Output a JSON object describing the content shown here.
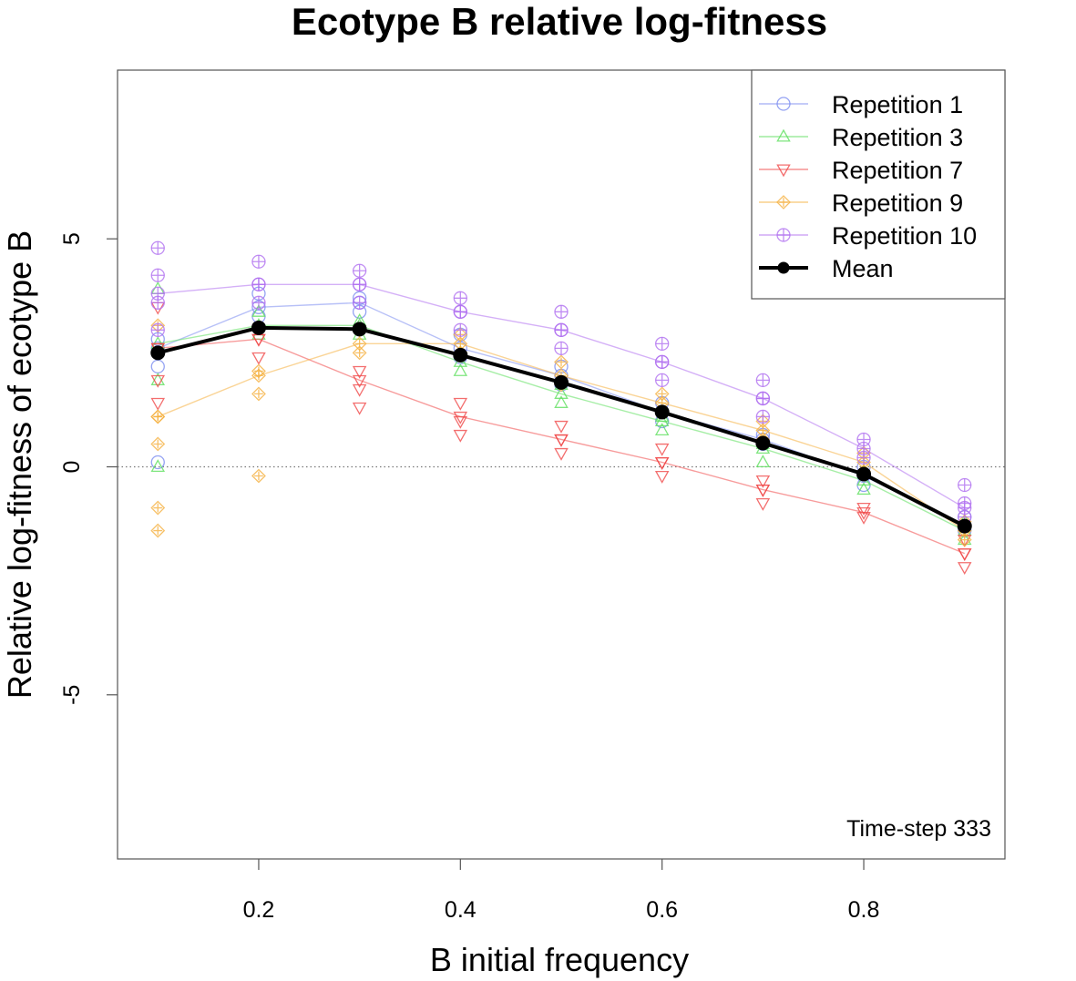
{
  "chart_data": {
    "type": "line",
    "title": "Ecotype B relative log-fitness",
    "xlabel": "B initial frequency",
    "ylabel": "Relative log-fitness of ecotype B",
    "annotation": "Time-step 333",
    "xlim": [
      0.06,
      0.94
    ],
    "ylim": [
      -8.6,
      8.7
    ],
    "x_ticks": [
      0.2,
      0.4,
      0.6,
      0.8
    ],
    "x_tick_labels": [
      "0.2",
      "0.4",
      "0.6",
      "0.8"
    ],
    "y_ticks": [
      -5,
      0,
      5
    ],
    "y_tick_labels": [
      "-5",
      "0",
      "5"
    ],
    "reference_line_y": 0,
    "legend_position": "top-right",
    "x": [
      0.1,
      0.2,
      0.3,
      0.4,
      0.5,
      0.6,
      0.7,
      0.8,
      0.9
    ],
    "series": [
      {
        "name": "Repetition 1",
        "color": "#7b8cf0",
        "marker": "circle",
        "values": [
          2.6,
          3.5,
          3.6,
          2.6,
          2.0,
          1.2,
          0.6,
          -0.2,
          -1.3
        ],
        "scatter": [
          [
            0.1,
            0.1
          ],
          [
            0.1,
            2.2
          ],
          [
            0.1,
            2.8
          ],
          [
            0.2,
            3.3
          ],
          [
            0.2,
            3.8
          ],
          [
            0.3,
            3.4
          ],
          [
            0.3,
            3.7
          ],
          [
            0.4,
            2.4
          ],
          [
            0.4,
            2.9
          ],
          [
            0.5,
            1.8
          ],
          [
            0.5,
            2.2
          ],
          [
            0.6,
            1.0
          ],
          [
            0.6,
            1.4
          ],
          [
            0.7,
            0.5
          ],
          [
            0.7,
            0.7
          ],
          [
            0.8,
            -0.4
          ],
          [
            0.8,
            0.0
          ],
          [
            0.9,
            -1.4
          ],
          [
            0.9,
            -1.1
          ]
        ]
      },
      {
        "name": "Repetition 3",
        "color": "#5fe05f",
        "marker": "triangle",
        "values": [
          2.7,
          3.1,
          3.1,
          2.3,
          1.6,
          1.0,
          0.4,
          -0.3,
          -1.4
        ],
        "scatter": [
          [
            0.1,
            0.0
          ],
          [
            0.1,
            1.9
          ],
          [
            0.1,
            3.9
          ],
          [
            0.2,
            2.9
          ],
          [
            0.2,
            3.4
          ],
          [
            0.3,
            2.9
          ],
          [
            0.3,
            3.2
          ],
          [
            0.4,
            2.1
          ],
          [
            0.4,
            2.5
          ],
          [
            0.5,
            1.4
          ],
          [
            0.5,
            1.8
          ],
          [
            0.6,
            0.8
          ],
          [
            0.6,
            1.1
          ],
          [
            0.7,
            0.1
          ],
          [
            0.7,
            0.5
          ],
          [
            0.8,
            -0.5
          ],
          [
            0.8,
            -0.1
          ],
          [
            0.9,
            -1.6
          ],
          [
            0.9,
            -1.2
          ]
        ]
      },
      {
        "name": "Repetition 7",
        "color": "#f04a4a",
        "marker": "triangle-down",
        "values": [
          2.6,
          2.8,
          1.9,
          1.1,
          0.6,
          0.1,
          -0.5,
          -1.0,
          -1.9
        ],
        "scatter": [
          [
            0.1,
            1.4
          ],
          [
            0.1,
            1.9
          ],
          [
            0.1,
            2.6
          ],
          [
            0.1,
            3.5
          ],
          [
            0.2,
            2.4
          ],
          [
            0.2,
            2.8
          ],
          [
            0.3,
            1.3
          ],
          [
            0.3,
            1.7
          ],
          [
            0.3,
            2.1
          ],
          [
            0.4,
            0.7
          ],
          [
            0.4,
            1.0
          ],
          [
            0.4,
            1.4
          ],
          [
            0.5,
            0.3
          ],
          [
            0.5,
            0.6
          ],
          [
            0.5,
            0.9
          ],
          [
            0.6,
            -0.2
          ],
          [
            0.6,
            0.1
          ],
          [
            0.6,
            0.4
          ],
          [
            0.7,
            -0.8
          ],
          [
            0.7,
            -0.5
          ],
          [
            0.7,
            -0.3
          ],
          [
            0.8,
            -1.1
          ],
          [
            0.8,
            -0.9
          ],
          [
            0.9,
            -2.2
          ],
          [
            0.9,
            -1.9
          ],
          [
            0.9,
            -1.6
          ]
        ]
      },
      {
        "name": "Repetition 9",
        "color": "#f5b040",
        "marker": "star",
        "values": [
          1.1,
          2.0,
          2.7,
          2.7,
          2.0,
          1.4,
          0.8,
          0.1,
          -1.4
        ],
        "scatter": [
          [
            0.1,
            -1.4
          ],
          [
            0.1,
            -0.9
          ],
          [
            0.1,
            0.5
          ],
          [
            0.1,
            1.1
          ],
          [
            0.1,
            3.1
          ],
          [
            0.2,
            -0.2
          ],
          [
            0.2,
            1.6
          ],
          [
            0.2,
            2.1
          ],
          [
            0.3,
            2.5
          ],
          [
            0.3,
            3.0
          ],
          [
            0.4,
            2.5
          ],
          [
            0.4,
            2.9
          ],
          [
            0.5,
            1.8
          ],
          [
            0.5,
            2.3
          ],
          [
            0.6,
            1.2
          ],
          [
            0.6,
            1.6
          ],
          [
            0.7,
            0.6
          ],
          [
            0.7,
            1.0
          ],
          [
            0.8,
            -0.1
          ],
          [
            0.8,
            0.3
          ],
          [
            0.9,
            -1.6
          ],
          [
            0.9,
            -1.2
          ]
        ]
      },
      {
        "name": "Repetition 10",
        "color": "#b070f0",
        "marker": "square",
        "values": [
          3.8,
          4.0,
          4.0,
          3.4,
          3.0,
          2.3,
          1.5,
          0.4,
          -0.9
        ],
        "scatter": [
          [
            0.1,
            3.0
          ],
          [
            0.1,
            3.6
          ],
          [
            0.1,
            4.2
          ],
          [
            0.1,
            4.8
          ],
          [
            0.2,
            3.6
          ],
          [
            0.2,
            4.0
          ],
          [
            0.2,
            4.5
          ],
          [
            0.3,
            3.6
          ],
          [
            0.3,
            4.0
          ],
          [
            0.3,
            4.3
          ],
          [
            0.4,
            3.0
          ],
          [
            0.4,
            3.4
          ],
          [
            0.4,
            3.7
          ],
          [
            0.5,
            2.6
          ],
          [
            0.5,
            3.0
          ],
          [
            0.5,
            3.4
          ],
          [
            0.6,
            1.9
          ],
          [
            0.6,
            2.3
          ],
          [
            0.6,
            2.7
          ],
          [
            0.7,
            1.1
          ],
          [
            0.7,
            1.5
          ],
          [
            0.7,
            1.9
          ],
          [
            0.8,
            0.2
          ],
          [
            0.8,
            0.6
          ],
          [
            0.9,
            -1.1
          ],
          [
            0.9,
            -0.8
          ],
          [
            0.9,
            -0.4
          ]
        ]
      },
      {
        "name": "Mean",
        "color": "#000000",
        "marker": "filled-circle",
        "values": [
          2.5,
          3.05,
          3.02,
          2.45,
          1.85,
          1.2,
          0.52,
          -0.16,
          -1.3
        ]
      }
    ]
  }
}
